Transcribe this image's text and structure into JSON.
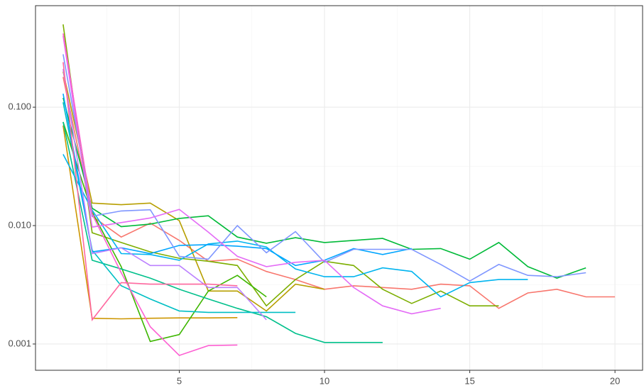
{
  "chart_data": {
    "type": "line",
    "ylog": true,
    "grid": true,
    "x": [
      1,
      2,
      3,
      4,
      5,
      6,
      7,
      8,
      9,
      10,
      11,
      12,
      13,
      14,
      15,
      16,
      17,
      18,
      19,
      20
    ],
    "xlim": [
      0.05,
      20.95
    ],
    "xticks": [
      5,
      10,
      15,
      20
    ],
    "ylim": [
      0.0006,
      0.72
    ],
    "yticks": [
      {
        "value": 0.001,
        "label": "0.001"
      },
      {
        "value": 0.01,
        "label": "0.010"
      },
      {
        "value": 0.1,
        "label": "0.100"
      }
    ],
    "series": [
      {
        "color": "#F8766D",
        "values": [
          0.18,
          0.012,
          0.008,
          0.0105,
          0.0075,
          0.005,
          0.0052,
          0.0041,
          0.0035,
          0.0029,
          0.0031,
          0.003,
          0.0029,
          0.0032,
          0.0031,
          0.002,
          0.0027,
          0.0029,
          0.0025,
          0.0025
        ]
      },
      {
        "color": "#CD9600",
        "values": [
          0.07,
          0.00165,
          0.00163,
          0.00165,
          0.00166,
          0.00166,
          0.00167,
          null,
          null,
          null,
          null,
          null,
          null,
          null,
          null,
          null,
          null,
          null,
          null,
          null
        ]
      },
      {
        "color": "#B79F00",
        "values": [
          0.2,
          0.0155,
          0.015,
          0.0155,
          0.011,
          0.0028,
          0.0028,
          0.0019,
          0.0032,
          0.0029,
          null,
          null,
          null,
          null,
          null,
          null,
          null,
          null,
          null,
          null
        ]
      },
      {
        "color": "#7CAE00",
        "values": [
          0.5,
          0.0087,
          0.0072,
          0.006,
          0.0053,
          0.005,
          0.0046,
          0.0021,
          0.0035,
          0.005,
          0.0046,
          0.0029,
          0.0022,
          0.0028,
          0.0021,
          0.0021,
          null,
          null,
          null,
          null
        ]
      },
      {
        "color": "#3DB600",
        "values": [
          0.075,
          0.013,
          0.0045,
          0.00105,
          0.0012,
          0.0028,
          0.0038,
          0.0025,
          null,
          null,
          null,
          null,
          null,
          null,
          null,
          null,
          null,
          null,
          null,
          null
        ]
      },
      {
        "color": "#00BA38",
        "values": [
          0.12,
          0.014,
          0.0098,
          0.0103,
          0.0115,
          0.0121,
          0.008,
          0.0071,
          0.0079,
          0.0072,
          0.0075,
          0.0078,
          0.0063,
          0.0064,
          0.0052,
          0.0072,
          0.0045,
          0.0036,
          0.0044,
          null
        ]
      },
      {
        "color": "#00C08B",
        "values": [
          0.075,
          0.0051,
          0.0043,
          0.0036,
          0.0029,
          0.0024,
          0.002,
          0.0017,
          0.00123,
          0.00103,
          0.00103,
          0.00103,
          null,
          null,
          null,
          null,
          null,
          null,
          null,
          null
        ]
      },
      {
        "color": "#00BFC4",
        "values": [
          0.11,
          0.0062,
          0.0031,
          0.0024,
          0.0019,
          0.00185,
          0.00185,
          0.00185,
          0.00185,
          null,
          null,
          null,
          null,
          null,
          null,
          null,
          null,
          null,
          null,
          null
        ]
      },
      {
        "color": "#00B4EF",
        "values": [
          0.04,
          0.0135,
          0.0058,
          0.0057,
          0.0051,
          0.007,
          0.0074,
          0.0066,
          0.0043,
          0.0037,
          0.0037,
          0.0044,
          0.0041,
          0.0025,
          0.0033,
          0.0035,
          0.0035,
          null,
          null,
          null
        ]
      },
      {
        "color": "#00A5FF",
        "values": [
          0.13,
          0.006,
          0.0065,
          0.0058,
          0.0068,
          0.0069,
          0.0067,
          0.0064,
          0.0046,
          0.0051,
          0.0064,
          0.0057,
          0.0064,
          null,
          null,
          null,
          null,
          null,
          null,
          null
        ]
      },
      {
        "color": "#7F96FF",
        "values": [
          0.28,
          0.012,
          0.0133,
          0.0136,
          0.0055,
          0.0052,
          0.01,
          0.0059,
          0.0089,
          0.0049,
          0.0063,
          0.0063,
          0.0063,
          0.0047,
          0.0034,
          0.0047,
          0.0038,
          0.0037,
          0.004,
          null
        ]
      },
      {
        "color": "#BC81FF",
        "values": [
          0.21,
          0.0058,
          0.0065,
          0.0046,
          0.0046,
          0.003,
          0.003,
          0.0016,
          null,
          null,
          null,
          null,
          null,
          null,
          null,
          null,
          null,
          null,
          null,
          null
        ]
      },
      {
        "color": "#E46CF6",
        "values": [
          0.4,
          0.0097,
          0.0106,
          0.0116,
          0.0137,
          0.0088,
          0.0055,
          0.0045,
          0.0049,
          0.0051,
          0.003,
          0.0021,
          0.0018,
          0.002,
          null,
          null,
          null,
          null,
          null,
          null
        ]
      },
      {
        "color": "#FD61D3",
        "values": [
          0.42,
          0.0125,
          0.004,
          0.0014,
          0.0008,
          0.00097,
          0.00098,
          null,
          null,
          null,
          null,
          null,
          null,
          null,
          null,
          null,
          null,
          null,
          null,
          null
        ]
      },
      {
        "color": "#FF689F",
        "values": [
          0.24,
          0.0016,
          0.0033,
          0.0032,
          0.0032,
          0.0032,
          0.0031,
          null,
          null,
          null,
          null,
          null,
          null,
          null,
          null,
          null,
          null,
          null,
          null,
          null
        ]
      }
    ]
  }
}
